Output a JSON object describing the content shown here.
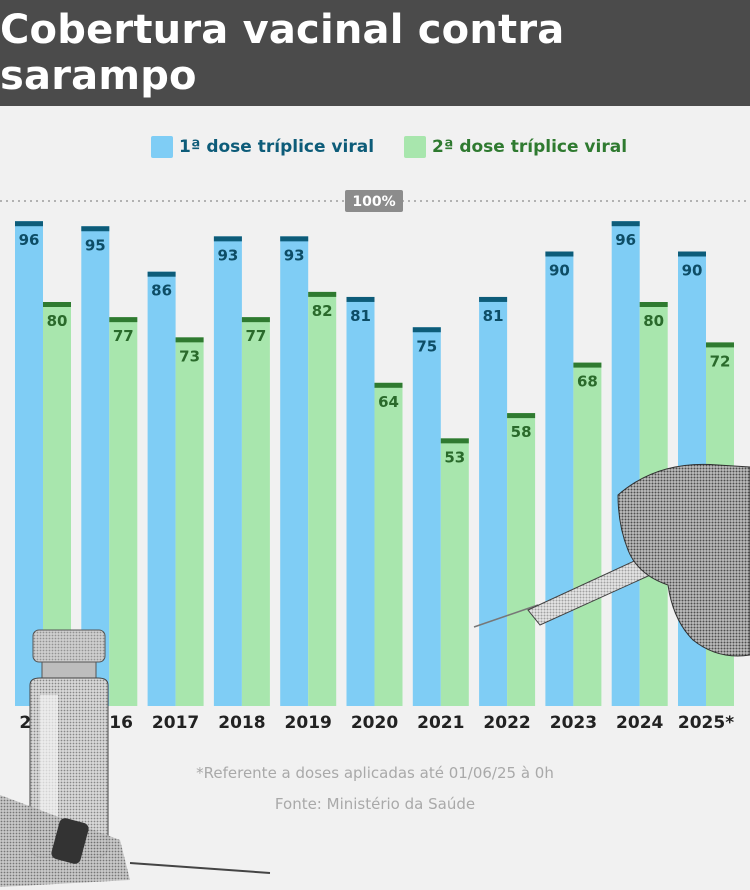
{
  "title": "Cobertura vacinal contra sarampo",
  "footnote": "*Referente a doses aplicadas até 01/06/25 à 0h",
  "source": "Fonte: Ministério da Saúde",
  "colors": {
    "header_bg": "#4b4b4b",
    "first_dose_fill": "#7fcdf5",
    "first_dose_cap": "#0d5c79",
    "second_dose_fill": "#a8e6ad",
    "second_dose_cap": "#2f7a30",
    "reference_badge": "#8c8c8c"
  },
  "chart_data": {
    "type": "bar",
    "categories": [
      "2015",
      "2016",
      "2017",
      "2018",
      "2019",
      "2020",
      "2021",
      "2022",
      "2023",
      "2024",
      "2025*"
    ],
    "series": [
      {
        "name": "1ª dose tríplice viral",
        "values": [
          96,
          95,
          86,
          93,
          93,
          81,
          75,
          81,
          90,
          96,
          90
        ]
      },
      {
        "name": "2ª dose tríplice viral",
        "values": [
          80,
          77,
          73,
          77,
          82,
          64,
          53,
          58,
          68,
          80,
          72
        ]
      }
    ],
    "reference_line": {
      "value": 100,
      "label": "100%"
    },
    "ylim": [
      0,
      100
    ],
    "legend": "top-center",
    "grid": false
  }
}
